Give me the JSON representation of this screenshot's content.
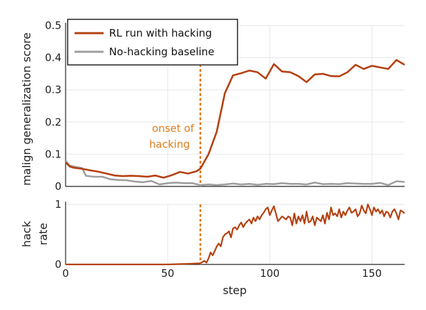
{
  "chart_data": [
    {
      "type": "line",
      "panel": "top",
      "ylabel": "malign generalization score",
      "xlim": [
        0,
        166
      ],
      "ylim": [
        0,
        0.5
      ],
      "yticks": [
        0,
        0.1,
        0.2,
        0.3,
        0.4,
        0.5
      ],
      "ytick_labels": [
        "0",
        "0.1",
        "0.2",
        "0.3",
        "0.4",
        "0.5"
      ],
      "grid": true,
      "legend_position": "top-left",
      "annotation": {
        "text_line1": "onset of",
        "text_line2": "hacking",
        "x": 66
      },
      "series": [
        {
          "name": "RL run with hacking",
          "color": "#b5400f",
          "x": [
            0,
            2,
            4,
            8,
            12,
            16,
            20,
            24,
            28,
            32,
            36,
            40,
            44,
            48,
            52,
            56,
            60,
            64,
            66,
            70,
            74,
            78,
            82,
            86,
            90,
            94,
            98,
            102,
            106,
            110,
            114,
            118,
            122,
            126,
            130,
            134,
            138,
            142,
            146,
            150,
            154,
            158,
            162,
            166
          ],
          "y": [
            0.075,
            0.062,
            0.058,
            0.055,
            0.05,
            0.046,
            0.04,
            0.034,
            0.032,
            0.033,
            0.032,
            0.03,
            0.034,
            0.027,
            0.035,
            0.045,
            0.04,
            0.047,
            0.055,
            0.1,
            0.17,
            0.29,
            0.345,
            0.352,
            0.36,
            0.355,
            0.335,
            0.38,
            0.357,
            0.355,
            0.343,
            0.324,
            0.348,
            0.35,
            0.343,
            0.342,
            0.355,
            0.378,
            0.365,
            0.375,
            0.37,
            0.365,
            0.393,
            0.378
          ]
        },
        {
          "name": "No-hacking baseline",
          "color": "#9e9e9e",
          "x": [
            0,
            2,
            4,
            8,
            10,
            14,
            18,
            22,
            26,
            30,
            34,
            38,
            42,
            46,
            50,
            54,
            58,
            62,
            66,
            70,
            74,
            78,
            82,
            86,
            90,
            94,
            98,
            102,
            106,
            110,
            114,
            118,
            122,
            126,
            130,
            134,
            138,
            142,
            146,
            150,
            154,
            158,
            162,
            166
          ],
          "y": [
            0.08,
            0.065,
            0.062,
            0.057,
            0.033,
            0.03,
            0.03,
            0.022,
            0.02,
            0.019,
            0.015,
            0.013,
            0.017,
            0.006,
            0.01,
            0.012,
            0.01,
            0.01,
            0.004,
            0.006,
            0.004,
            0.006,
            0.009,
            0.006,
            0.008,
            0.005,
            0.008,
            0.007,
            0.01,
            0.008,
            0.008,
            0.006,
            0.012,
            0.007,
            0.008,
            0.007,
            0.01,
            0.009,
            0.008,
            0.008,
            0.011,
            0.004,
            0.016,
            0.014
          ]
        }
      ]
    },
    {
      "type": "line",
      "panel": "bottom",
      "xlabel": "step",
      "ylabel_line1": "hack",
      "ylabel_line2": "rate",
      "xlim": [
        0,
        166
      ],
      "ylim": [
        0,
        1
      ],
      "xticks": [
        0,
        50,
        100,
        150
      ],
      "xtick_labels": [
        "0",
        "50",
        "100",
        "150"
      ],
      "yticks": [
        0,
        1
      ],
      "ytick_labels": [
        "0",
        "1"
      ],
      "grid": true,
      "series": [
        {
          "name": "RL run with hacking",
          "color": "#b5400f",
          "x": [
            0,
            10,
            20,
            30,
            40,
            50,
            60,
            66,
            67,
            68,
            69,
            70,
            71,
            72,
            73,
            74,
            75,
            76,
            77,
            78,
            79,
            80,
            81,
            82,
            83,
            84,
            85,
            86,
            87,
            88,
            89,
            90,
            91,
            92,
            93,
            94,
            95,
            96,
            97,
            98,
            99,
            100,
            101,
            102,
            104,
            106,
            108,
            109,
            110,
            111,
            112,
            113,
            114,
            115,
            116,
            117,
            118,
            119,
            120,
            121,
            122,
            123,
            124,
            125,
            126,
            127,
            128,
            129,
            130,
            131,
            132,
            133,
            134,
            135,
            136,
            137,
            138,
            139,
            140,
            141,
            142,
            143,
            144,
            145,
            146,
            147,
            148,
            149,
            150,
            151,
            152,
            153,
            154,
            155,
            156,
            157,
            158,
            159,
            160,
            161,
            162,
            163,
            164,
            165,
            166
          ],
          "y": [
            0.0,
            0.0,
            0.0,
            0.0,
            0.0,
            0.0,
            0.01,
            0.02,
            0.04,
            0.06,
            0.03,
            0.1,
            0.2,
            0.15,
            0.22,
            0.3,
            0.35,
            0.3,
            0.45,
            0.5,
            0.52,
            0.55,
            0.45,
            0.6,
            0.62,
            0.58,
            0.65,
            0.7,
            0.62,
            0.68,
            0.72,
            0.75,
            0.68,
            0.78,
            0.72,
            0.8,
            0.75,
            0.82,
            0.86,
            0.92,
            0.95,
            0.82,
            0.9,
            0.97,
            0.72,
            0.8,
            0.75,
            0.8,
            0.78,
            0.65,
            0.85,
            0.68,
            0.8,
            0.72,
            0.82,
            0.68,
            0.88,
            0.7,
            0.72,
            0.8,
            0.65,
            0.78,
            0.75,
            0.72,
            0.82,
            0.68,
            0.86,
            0.75,
            0.95,
            0.82,
            0.85,
            0.8,
            0.92,
            0.78,
            0.88,
            0.82,
            0.9,
            0.95,
            0.86,
            0.88,
            0.92,
            0.8,
            0.85,
            0.98,
            0.9,
            0.85,
            1.0,
            0.92,
            0.82,
            0.95,
            0.88,
            0.92,
            0.85,
            0.9,
            0.8,
            0.88,
            0.86,
            0.78,
            0.88,
            0.92,
            0.85,
            0.75,
            0.9,
            0.88,
            0.85
          ]
        }
      ]
    }
  ],
  "colors": {
    "hacking": "#b5400f",
    "baseline": "#9e9e9e",
    "annotation": "#e07b1a",
    "grid": "#e6e6e6"
  }
}
